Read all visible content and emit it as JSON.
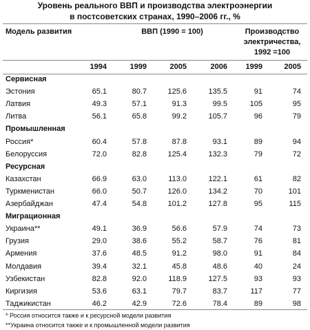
{
  "title": [
    "Уровень реального ВВП и производства электроэнергии",
    "в постсоветских странах, 1990–2006 гг., %"
  ],
  "header": {
    "model": "Модель развития",
    "gdp": "ВВП (1990 = 100)",
    "power": [
      "Производство",
      "электричества,",
      "1992 =100"
    ]
  },
  "years": [
    "1994",
    "1999",
    "2005",
    "2006",
    "1999",
    "2005"
  ],
  "groups": [
    {
      "name": "Сервисная",
      "rows": [
        [
          "Эстония",
          "65.1",
          "80.7",
          "125.6",
          "135.5",
          "91",
          "74"
        ],
        [
          "Латвия",
          "49.3",
          "57.1",
          "91.3",
          "99.5",
          "105",
          "95"
        ],
        [
          "Литва",
          "56.1",
          "65.8",
          "99.2",
          "105.7",
          "96",
          "79"
        ]
      ]
    },
    {
      "name": "Промышленная",
      "rows": [
        [
          "Россия*",
          "60.4",
          "57.8",
          "87.8",
          "93.1",
          "89",
          "94"
        ],
        [
          "Белоруссия",
          "72.0",
          "82.8",
          "125.4",
          "132.3",
          "79",
          "72"
        ]
      ]
    },
    {
      "name": "Ресурсная",
      "rows": [
        [
          "Казахстан",
          "66.9",
          "63.0",
          "113.0",
          "122.1",
          "61",
          "82"
        ],
        [
          "Туркменистан",
          "66.0",
          "50.7",
          "126.0",
          "134.2",
          "70",
          "101"
        ],
        [
          "Азербайджан",
          "47.4",
          "54.8",
          "101.2",
          "127.8",
          "95",
          "115"
        ]
      ]
    },
    {
      "name": "Миграционная",
      "rows": [
        [
          "Украина**",
          "49.1",
          "36.9",
          "56.6",
          "57.9",
          "74",
          "73"
        ],
        [
          "Грузия",
          "29.0",
          "38.6",
          "55.2",
          "58.7",
          "76",
          "81"
        ],
        [
          "Армения",
          "37.6",
          "48.5",
          "91.2",
          "98.0",
          "91",
          "84"
        ],
        [
          "Молдавия",
          "39.4",
          "32.1",
          "45.8",
          "48.6",
          "40",
          "24"
        ],
        [
          "Узбекистан",
          "82.8",
          "92.0",
          "118.9",
          "127.5",
          "93",
          "93"
        ],
        [
          "Киргизия",
          "53.6",
          "63.1",
          "79.7",
          "83.7",
          "117",
          "77"
        ],
        [
          "Таджикистан",
          "46.2",
          "42.9",
          "72.6",
          "78.4",
          "89",
          "98"
        ]
      ]
    }
  ],
  "footnotes": [
    "*  Россия относится также и к ресурсной модели развития",
    "**Украина относится также и к промышленной модели развития"
  ]
}
